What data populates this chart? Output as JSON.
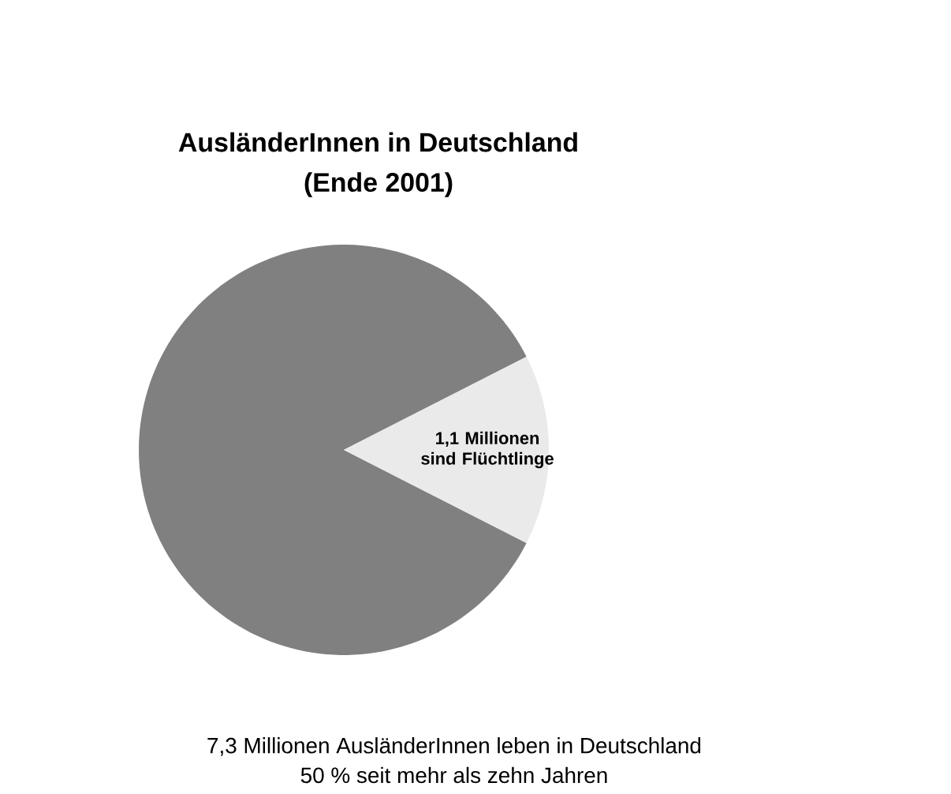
{
  "chart_data": {
    "type": "pie",
    "title": "AusländerInnen in Deutschland",
    "subtitle": "(Ende 2001)",
    "categories": [
      null,
      "1,1 Millionen sind Flüchtlinge"
    ],
    "values": [
      85,
      15
    ],
    "colors": [
      "#808080",
      "#eaeaea"
    ],
    "annotations": [
      "7,3 Millionen AusländerInnen leben in Deutschland",
      "50 % seit mehr als zehn Jahren"
    ]
  }
}
